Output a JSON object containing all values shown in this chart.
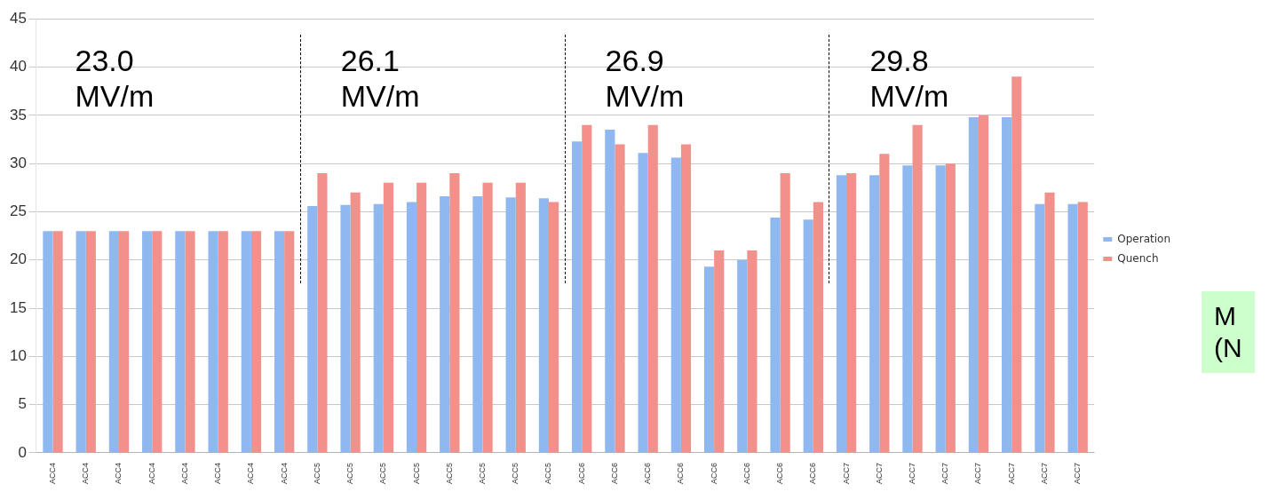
{
  "chart_data": {
    "type": "bar",
    "categories": [
      "ACC4",
      "ACC4",
      "ACC4",
      "ACC4",
      "ACC4",
      "ACC4",
      "ACC4",
      "ACC4",
      "ACC5",
      "ACC5",
      "ACC5",
      "ACC5",
      "ACC5",
      "ACC5",
      "ACC5",
      "ACC5",
      "ACC6",
      "ACC6",
      "ACC6",
      "ACC6",
      "ACC6",
      "ACC6",
      "ACC6",
      "ACC6",
      "ACC7",
      "ACC7",
      "ACC7",
      "ACC7",
      "ACC7",
      "ACC7",
      "ACC7",
      "ACC7"
    ],
    "series": [
      {
        "name": "Operation",
        "color": "#8fb8f0",
        "values": [
          23,
          23,
          23,
          23,
          23,
          23,
          23,
          23,
          25.6,
          25.7,
          25.8,
          26.0,
          26.6,
          26.6,
          26.5,
          26.4,
          32.3,
          33.5,
          31.1,
          30.6,
          19.3,
          20.0,
          24.4,
          24.2,
          28.8,
          28.8,
          29.8,
          29.8,
          34.8,
          34.8,
          25.8,
          25.8
        ]
      },
      {
        "name": "Quench",
        "color": "#f2918c",
        "values": [
          23,
          23,
          23,
          23,
          23,
          23,
          23,
          23,
          29,
          27,
          28,
          28,
          29,
          28,
          28,
          26,
          34,
          32,
          34,
          32,
          21,
          21,
          29,
          26,
          29,
          31,
          34,
          30,
          35,
          39,
          27,
          26
        ]
      }
    ],
    "ylim": [
      0,
      45
    ],
    "yticks": [
      0,
      5,
      10,
      15,
      20,
      25,
      30,
      35,
      40,
      45
    ],
    "grid": "y",
    "legend": "right",
    "annotations": [
      "23.0\nMV/m",
      "26.1\nMV/m",
      "26.9\nMV/m",
      "29.8\nMV/m",
      "M\n(N"
    ]
  }
}
